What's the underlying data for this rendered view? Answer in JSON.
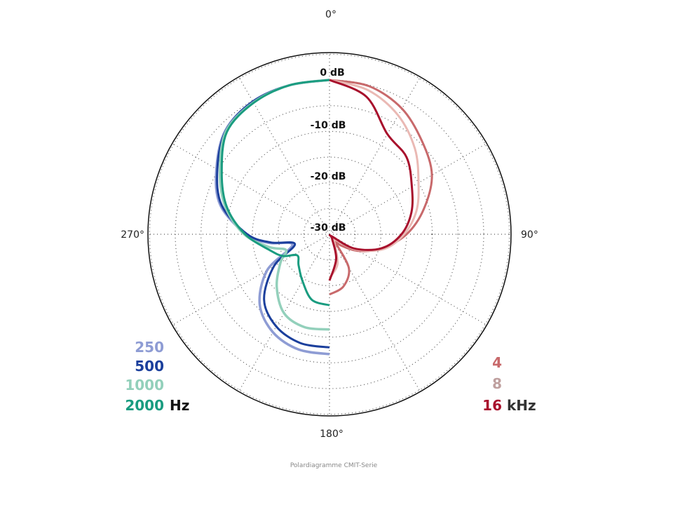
{
  "chart_data": {
    "type": "polar",
    "title": "",
    "caption": "Polardiagramme CMIT-Serie",
    "angle_labels": {
      "a0": "0°",
      "a90": "90°",
      "a180": "180°",
      "a270": "270°"
    },
    "radial_labels": [
      "0 dB",
      "-10 dB",
      "-20 dB",
      "-30 dB"
    ],
    "radial_range_db": [
      -30,
      0
    ],
    "radial_grid_step_db": 5,
    "angular_grid_step_deg": 30,
    "grid": true,
    "legend_left": {
      "entries": [
        "250",
        "500",
        "1000",
        "2000"
      ],
      "unit": "Hz"
    },
    "legend_right": {
      "entries": [
        "4",
        "8",
        "16"
      ],
      "unit": "kHz"
    },
    "unit_color": "#222222",
    "series": [
      {
        "name": "250",
        "unit": "Hz",
        "color": "#8e9cd4",
        "width": 3.5,
        "angles": [
          180,
          195,
          210,
          225,
          240,
          254,
          262,
          270,
          285,
          300,
          315,
          330,
          345,
          360
        ],
        "db": [
          -6.7,
          -6.8,
          -8,
          -10.8,
          -16,
          -22.5,
          -18,
          -13.8,
          -8,
          -4.6,
          -1.4,
          -0.2,
          0,
          0
        ]
      },
      {
        "name": "500",
        "unit": "Hz",
        "color": "#1b3f9c",
        "width": 3,
        "angles": [
          180,
          195,
          210,
          225,
          240,
          254,
          262,
          270,
          285,
          300,
          315,
          330,
          345,
          360
        ],
        "db": [
          -8,
          -8.1,
          -9.3,
          -12,
          -17.5,
          -23,
          -18.5,
          -14,
          -8.3,
          -4.8,
          -1.5,
          -0.2,
          0,
          0
        ]
      },
      {
        "name": "1000",
        "unit": "Hz",
        "color": "#93d0bb",
        "width": 3.5,
        "angles": [
          180,
          195,
          210,
          225,
          240,
          250,
          258,
          270,
          285,
          300,
          315,
          330,
          345,
          360
        ],
        "db": [
          -11.5,
          -11.3,
          -12.3,
          -15.5,
          -19,
          -21,
          -18,
          -13.4,
          -9,
          -5.4,
          -1.6,
          -0.4,
          0,
          0
        ]
      },
      {
        "name": "2000",
        "unit": "Hz",
        "color": "#1a9c80",
        "width": 3,
        "angles": [
          180,
          195,
          210,
          225,
          237,
          245,
          255,
          270,
          285,
          300,
          315,
          330,
          345,
          360
        ],
        "db": [
          -16.2,
          -16.8,
          -19.5,
          -21.5,
          -22.5,
          -20,
          -18,
          -13.6,
          -9.3,
          -5.8,
          -1.8,
          -0.5,
          0,
          0
        ]
      },
      {
        "name": "4",
        "unit": "kHz",
        "color": "#c8696b",
        "width": 3,
        "angles": [
          0,
          15,
          30,
          45,
          60,
          75,
          90,
          105,
          120,
          135,
          142,
          150,
          165,
          180
        ],
        "db": [
          0,
          -0.2,
          -1.8,
          -4.5,
          -7,
          -11,
          -15,
          -19.5,
          -23.5,
          -27,
          -28.5,
          -22.5,
          -19.5,
          -18.3
        ]
      },
      {
        "name": "8",
        "unit": "kHz",
        "color": "#eab9b4",
        "width": 3,
        "angles": [
          0,
          15,
          30,
          45,
          60,
          75,
          90,
          105,
          120,
          135,
          150,
          165,
          180
        ],
        "db": [
          0,
          -1,
          -3.3,
          -6.5,
          -10,
          -12.5,
          -15.5,
          -19,
          -24,
          -28.5,
          -28,
          -24,
          -21.5
        ]
      },
      {
        "name": "16",
        "unit": "kHz",
        "color": "#a8102c",
        "width": 3,
        "angles": [
          0,
          15,
          30,
          45,
          60,
          75,
          90,
          105,
          120,
          135,
          150,
          165,
          180
        ],
        "db": [
          0,
          -2.3,
          -7.5,
          -8.8,
          -11.5,
          -13.5,
          -16,
          -19.5,
          -24.5,
          -29.5,
          -29,
          -25,
          -21
        ]
      }
    ],
    "label_colors": {
      "250": "#8e9cd4",
      "500": "#1b3f9c",
      "1000": "#93d0bb",
      "2000": "#1a9c80",
      "4": "#c8696b",
      "8": "#bfa09f",
      "16": "#a8102c"
    }
  }
}
